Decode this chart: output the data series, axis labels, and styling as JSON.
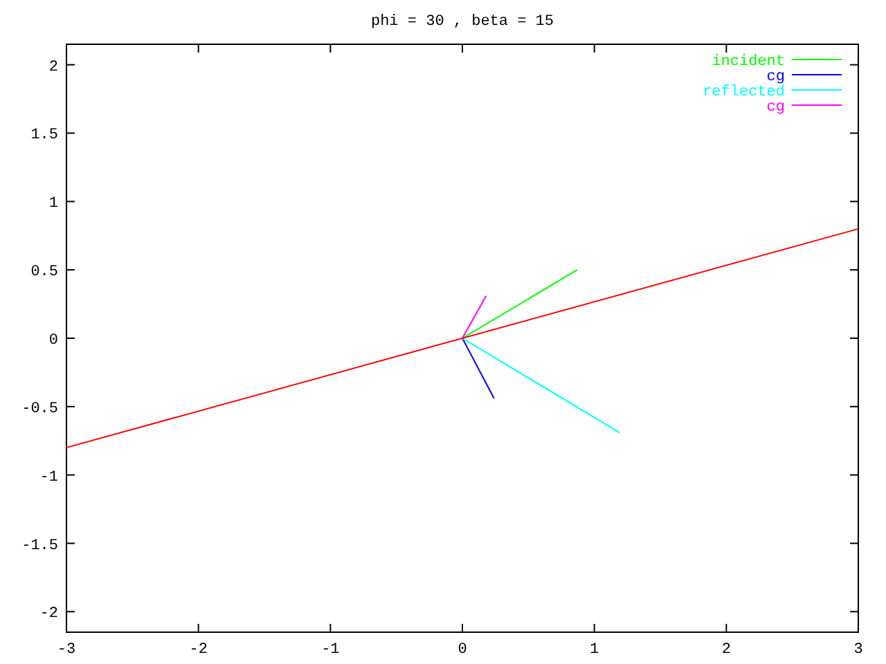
{
  "chart_data": {
    "type": "line",
    "title": "phi = 30 , beta = 15",
    "xlim": [
      -3,
      3
    ],
    "ylim": [
      -2.15,
      2.15
    ],
    "xticks": [
      -3,
      -2,
      -1,
      0,
      1,
      2,
      3
    ],
    "yticks": [
      -2,
      -1.5,
      -1,
      -0.5,
      0,
      0.5,
      1,
      1.5,
      2
    ],
    "grid": false,
    "legend": "top right",
    "marker": "none",
    "line_style": "solid",
    "series": [
      {
        "name": "incident",
        "color": "#00ff00",
        "x": [
          0,
          0.87
        ],
        "values": [
          0,
          0.5
        ]
      },
      {
        "name": "cg",
        "color": "#0000ff",
        "x": [
          0,
          0.24
        ],
        "values": [
          0,
          -0.44
        ]
      },
      {
        "name": "reflected",
        "color": "#00ffff",
        "x": [
          0,
          1.19
        ],
        "values": [
          0,
          -0.69
        ]
      },
      {
        "name": "cg",
        "color": "#ff00ff",
        "x": [
          0,
          0.18
        ],
        "values": [
          0,
          0.31
        ]
      },
      {
        "color": "#ff0000",
        "x": [
          -3,
          3
        ],
        "values": [
          -0.8,
          0.8
        ]
      }
    ]
  }
}
